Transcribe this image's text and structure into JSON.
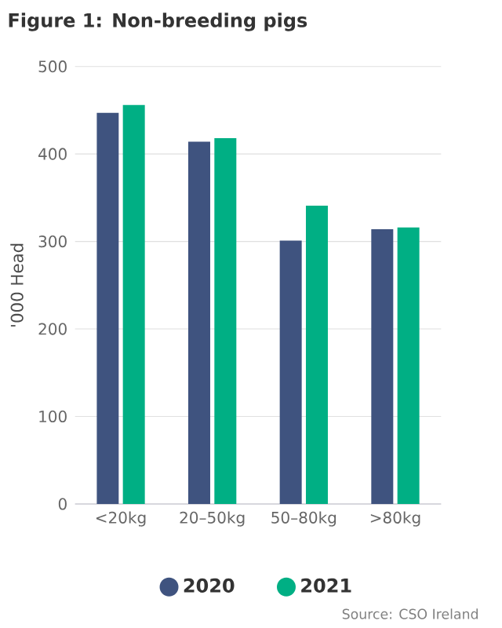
{
  "chart_data": {
    "type": "bar",
    "title": "Figure 1: Non-breeding pigs",
    "ylabel": "'000 Head",
    "categories": [
      "<20kg",
      "20–50kg",
      "50–80kg",
      ">80kg"
    ],
    "series": [
      {
        "name": "2020",
        "color": "#3f537f",
        "values": [
          447,
          414,
          301,
          314
        ]
      },
      {
        "name": "2021",
        "color": "#00af84",
        "values": [
          456,
          418,
          341,
          316
        ]
      }
    ],
    "ylim": [
      0,
      500
    ],
    "yticks": [
      0,
      100,
      200,
      300,
      400,
      500
    ],
    "grid": "y",
    "legend": "bottom",
    "annotations": [
      "Source: CSO Ireland"
    ]
  }
}
